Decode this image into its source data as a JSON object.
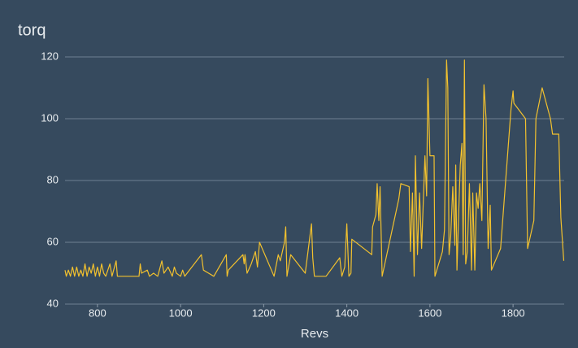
{
  "chart_data": {
    "type": "line",
    "title": "torq",
    "x_label": "Revs",
    "color": "#f2c12e",
    "x": [
      722,
      725,
      730,
      735,
      740,
      745,
      750,
      755,
      760,
      765,
      770,
      775,
      780,
      785,
      790,
      795,
      800,
      805,
      810,
      815,
      820,
      830,
      835,
      845,
      848,
      900,
      903,
      906,
      920,
      925,
      935,
      945,
      955,
      960,
      970,
      980,
      985,
      990,
      1000,
      1005,
      1010,
      1050,
      1055,
      1080,
      1110,
      1112,
      1115,
      1150,
      1153,
      1155,
      1160,
      1170,
      1180,
      1185,
      1190,
      1225,
      1235,
      1240,
      1250,
      1253,
      1256,
      1265,
      1300,
      1315,
      1318,
      1322,
      1350,
      1383,
      1388,
      1395,
      1400,
      1405,
      1410,
      1412,
      1460,
      1462,
      1470,
      1473,
      1477,
      1480,
      1485,
      1525,
      1530,
      1550,
      1553,
      1558,
      1562,
      1565,
      1570,
      1575,
      1580,
      1588,
      1592,
      1595,
      1600,
      1610,
      1612,
      1630,
      1635,
      1640,
      1643,
      1646,
      1650,
      1655,
      1660,
      1662,
      1665,
      1670,
      1673,
      1677,
      1680,
      1683,
      1686,
      1690,
      1695,
      1700,
      1703,
      1708,
      1712,
      1716,
      1720,
      1725,
      1730,
      1735,
      1740,
      1745,
      1748,
      1770,
      1780,
      1795,
      1800,
      1802,
      1830,
      1835,
      1850,
      1855,
      1870,
      1890,
      1895,
      1910,
      1915,
      1922
    ],
    "values": [
      51,
      49,
      51,
      49,
      52,
      49,
      52,
      49,
      51,
      49,
      53,
      49,
      52,
      50,
      53,
      49,
      52,
      49,
      53,
      50,
      49,
      53,
      49,
      54,
      49,
      49,
      53,
      50,
      51,
      49,
      50,
      49,
      54,
      50,
      52,
      49,
      52,
      50,
      49,
      51,
      49,
      56,
      51,
      49,
      56,
      49,
      51,
      56,
      53,
      56,
      50,
      53,
      57,
      52,
      60,
      49,
      56,
      54,
      60,
      65,
      49,
      56,
      50,
      66,
      55,
      49,
      49,
      55,
      49,
      52,
      66,
      49,
      50,
      61,
      56,
      65,
      69,
      79,
      67,
      78,
      49,
      74,
      79,
      78,
      57,
      76,
      49,
      88,
      56,
      76,
      58,
      88,
      75,
      113,
      88,
      88,
      49,
      57,
      64,
      119,
      110,
      56,
      62,
      78,
      59,
      85,
      51,
      73,
      85,
      92,
      56,
      119,
      53,
      57,
      79,
      51,
      76,
      51,
      76,
      71,
      79,
      67,
      111,
      100,
      58,
      72,
      51,
      58,
      76,
      103,
      109,
      105,
      100,
      58,
      67,
      100,
      110,
      100,
      95,
      95,
      68,
      54
    ],
    "xlim": [
      722,
      1923
    ],
    "xticks": [
      800,
      1000,
      1200,
      1400,
      1600,
      1800
    ],
    "ylim": [
      40,
      120
    ],
    "yticks": [
      40,
      60,
      80,
      100,
      120
    ],
    "grid": true
  }
}
